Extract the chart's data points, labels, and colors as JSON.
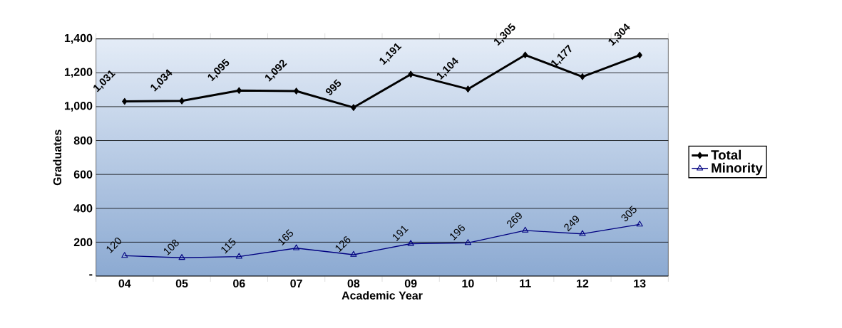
{
  "chart_data": {
    "type": "line",
    "xlabel": "Academic Year",
    "ylabel": "Graduates",
    "categories": [
      "04",
      "05",
      "06",
      "07",
      "08",
      "09",
      "10",
      "11",
      "12",
      "13"
    ],
    "series": [
      {
        "name": "Total",
        "color": "#000000",
        "marker": "diamond",
        "values": [
          1031,
          1034,
          1095,
          1092,
          995,
          1191,
          1104,
          1305,
          1177,
          1304
        ],
        "value_labels": [
          "1,031",
          "1,034",
          "1,095",
          "1,092",
          "995",
          "1,191",
          "1,104",
          "1,305",
          "1,177",
          "1,304"
        ]
      },
      {
        "name": "Minority",
        "color": "#000080",
        "marker": "triangle",
        "values": [
          120,
          108,
          115,
          165,
          126,
          191,
          196,
          269,
          249,
          305
        ],
        "value_labels": [
          "120",
          "108",
          "115",
          "165",
          "126",
          "191",
          "196",
          "269",
          "249",
          "305"
        ]
      }
    ],
    "ylim": [
      0,
      1400
    ],
    "yticks": [
      {
        "value": 0,
        "label": "-"
      },
      {
        "value": 200,
        "label": "200"
      },
      {
        "value": 400,
        "label": "400"
      },
      {
        "value": 600,
        "label": "600"
      },
      {
        "value": 800,
        "label": "800"
      },
      {
        "value": 1000,
        "label": "1,000"
      },
      {
        "value": 1200,
        "label": "1,200"
      },
      {
        "value": 1400,
        "label": "1,400"
      }
    ],
    "grid": "y",
    "legend": "right"
  }
}
